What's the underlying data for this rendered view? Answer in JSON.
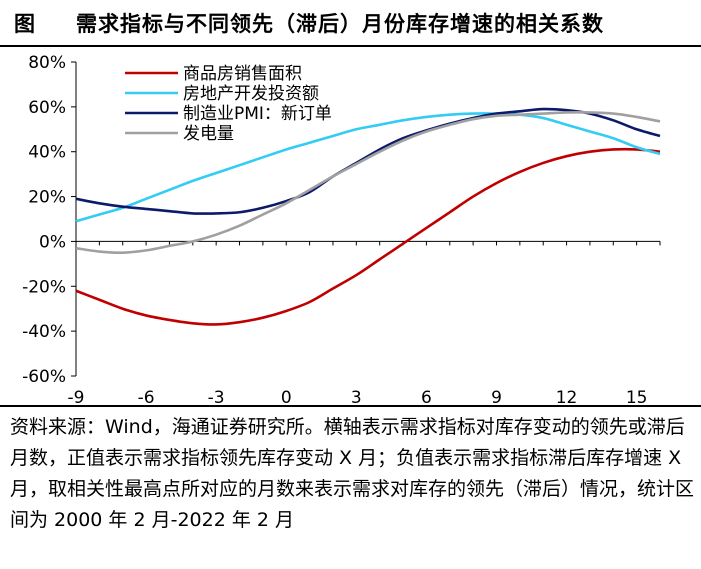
{
  "header": {
    "figure_label": "图",
    "title": "需求指标与不同领先（滞后）月份库存增速的相关系数"
  },
  "footer": {
    "source": "资料来源：Wind，海通证券研究所。横轴表示需求指标对库存变动的领先或滞后月数，正值表示需求指标领先库存变动 X 月；负值表示需求指标滞后库存增速 X 月，取相关性最高点所对应的月数来表示需求对库存的领先（滞后）情况，统计区间为 2000 年 2 月-2022 年 2 月"
  },
  "chart_data": {
    "type": "line",
    "title": "需求指标与不同领先（滞后）月份库存增速的相关系数",
    "xlabel": "",
    "ylabel": "",
    "xlim": [
      -9,
      16
    ],
    "ylim": [
      -60,
      80
    ],
    "x_ticks": [
      -9,
      -6,
      -3,
      0,
      3,
      6,
      9,
      12,
      15
    ],
    "x_tick_labels": [
      "-9",
      "-6",
      "-3",
      "0",
      "3",
      "6",
      "9",
      "12",
      "15"
    ],
    "y_ticks": [
      -60,
      -40,
      -20,
      0,
      20,
      40,
      60,
      80
    ],
    "y_tick_labels": [
      "-60%",
      "-40%",
      "-20%",
      "0%",
      "20%",
      "40%",
      "60%",
      "80%"
    ],
    "grid": false,
    "legend_position": "top-left",
    "x": [
      -9,
      -8,
      -7,
      -6,
      -5,
      -4,
      -3,
      -2,
      -1,
      0,
      1,
      2,
      3,
      4,
      5,
      6,
      7,
      8,
      9,
      10,
      11,
      12,
      13,
      14,
      15,
      16
    ],
    "series": [
      {
        "name": "商品房销售面积",
        "color": "#c00000",
        "values": [
          -22,
          -26,
          -30,
          -33,
          -35,
          -36.5,
          -37,
          -36,
          -34,
          -31,
          -27,
          -21,
          -15,
          -8,
          -1,
          6,
          13,
          20,
          26,
          31,
          35,
          38,
          40,
          41,
          41,
          40
        ]
      },
      {
        "name": "房地产开发投资额",
        "color": "#33ccf2",
        "values": [
          9,
          12,
          15,
          19,
          23,
          27,
          30.5,
          34,
          37.5,
          41,
          44,
          47,
          50,
          52,
          54,
          55.5,
          56.5,
          57,
          57,
          56.5,
          55,
          52,
          49,
          46,
          42,
          39
        ]
      },
      {
        "name": "制造业PMI：新订单",
        "color": "#0d1a6b",
        "values": [
          19,
          17,
          15.5,
          14.5,
          13.5,
          12.5,
          12.5,
          13,
          15,
          18,
          22,
          29,
          35,
          41,
          46,
          49.5,
          52.5,
          55,
          57,
          58,
          59,
          58.5,
          57,
          54,
          50,
          47
        ]
      },
      {
        "name": "发电量",
        "color": "#a0a0a0",
        "values": [
          -3,
          -4.5,
          -5,
          -4,
          -2,
          0,
          3,
          7,
          12,
          17,
          23,
          29,
          34.5,
          40,
          45,
          49,
          52,
          54.5,
          56,
          56.5,
          57,
          57.5,
          57.5,
          57,
          55.5,
          53.5
        ]
      }
    ]
  }
}
